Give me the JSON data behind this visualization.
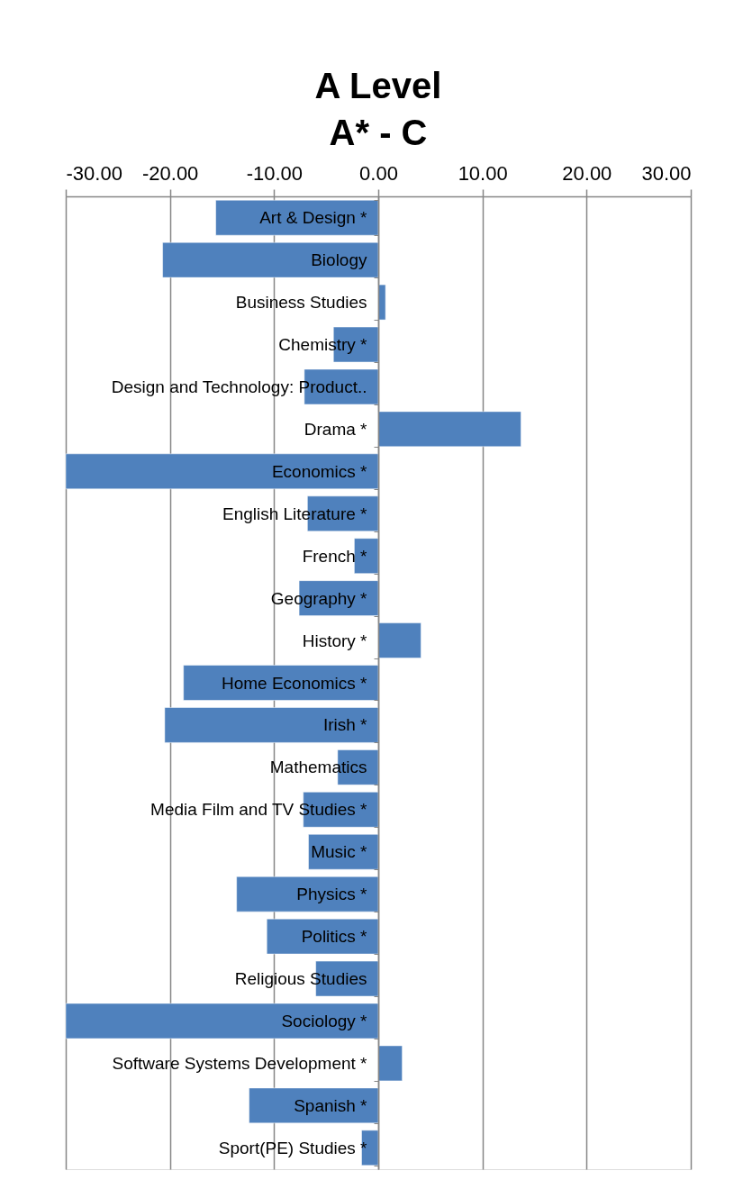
{
  "chart_data": {
    "type": "bar",
    "orientation": "horizontal",
    "title": [
      "A Level",
      "A* - C"
    ],
    "categories": [
      "Art & Design *",
      "Biology",
      "Business Studies",
      "Chemistry *",
      "Design and Technology: Product..",
      "Drama *",
      "Economics *",
      "English Literature *",
      "French *",
      "Geography *",
      "History *",
      "Home Economics *",
      "Irish *",
      "Mathematics",
      "Media Film and TV Studies *",
      "Music *",
      "Physics *",
      "Politics *",
      "Religious Studies",
      "Sociology *",
      "Software Systems Development *",
      "Spanish *",
      "Sport(PE) Studies *"
    ],
    "values": [
      -15.6,
      -20.7,
      0.7,
      -4.3,
      -7.1,
      13.7,
      -30.0,
      -6.8,
      -2.3,
      -7.6,
      4.1,
      -18.7,
      -20.5,
      -3.9,
      -7.2,
      -6.7,
      -13.6,
      -10.7,
      -6.0,
      -30.0,
      2.3,
      -12.4,
      -1.6
    ],
    "color": "#4f81bd",
    "xlim": [
      -30,
      30
    ],
    "xticks": [
      {
        "value": -30,
        "label": "-30.00"
      },
      {
        "value": -20,
        "label": "-20.00"
      },
      {
        "value": -10,
        "label": "-10.00"
      },
      {
        "value": 0,
        "label": "0.00"
      },
      {
        "value": 10,
        "label": "10.00"
      },
      {
        "value": 20,
        "label": "20.00"
      },
      {
        "value": 30,
        "label": "30.00"
      }
    ],
    "grid": "x"
  }
}
